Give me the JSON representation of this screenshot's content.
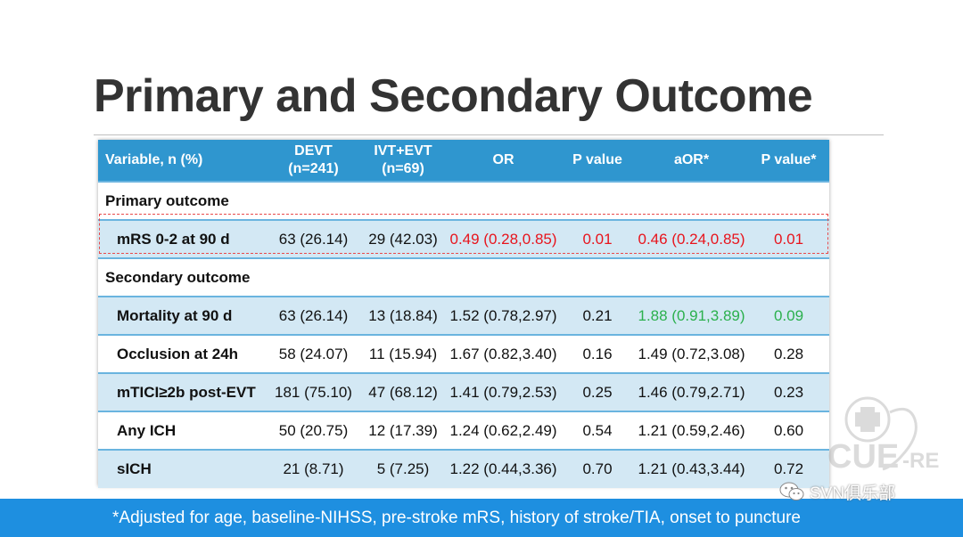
{
  "title": "Primary and Secondary Outcome",
  "table": {
    "headers": {
      "variable": "Variable, n (%)",
      "devt_1": "DEVT",
      "devt_2": "(n=241)",
      "ivt_1": "IVT+EVT",
      "ivt_2": "(n=69)",
      "or": "OR",
      "p1": "P value",
      "aor": "aOR*",
      "p2": "P value*"
    },
    "primary_label": "Primary outcome",
    "secondary_label": "Secondary outcome",
    "rows": [
      {
        "variable": "mRS 0-2 at 90 d",
        "devt": "63 (26.14)",
        "ivt": "29 (42.03)",
        "or": "0.49 (0.28,0.85)",
        "p": "0.01",
        "aor": "0.46 (0.24,0.85)",
        "p_adj": "0.01"
      },
      {
        "variable": "Mortality at 90 d",
        "devt": "63 (26.14)",
        "ivt": "13 (18.84)",
        "or": "1.52 (0.78,2.97)",
        "p": "0.21",
        "aor": "1.88 (0.91,3.89)",
        "p_adj": "0.09"
      },
      {
        "variable": "Occlusion at 24h",
        "devt": "58 (24.07)",
        "ivt": "11 (15.94)",
        "or": "1.67 (0.82,3.40)",
        "p": "0.16",
        "aor": "1.49 (0.72,3.08)",
        "p_adj": "0.28"
      },
      {
        "variable": "mTICI≥2b post-EVT",
        "devt": "181 (75.10)",
        "ivt": "47 (68.12)",
        "or": "1.41 (0.79,2.53)",
        "p": "0.25",
        "aor": "1.46 (0.79,2.71)",
        "p_adj": "0.23"
      },
      {
        "variable": "Any ICH",
        "devt": "50 (20.75)",
        "ivt": "12 (17.39)",
        "or": "1.24 (0.62,2.49)",
        "p": "0.54",
        "aor": "1.21 (0.59,2.46)",
        "p_adj": "0.60"
      },
      {
        "variable": "sICH",
        "devt": "21 (8.71)",
        "ivt": "5 (7.25)",
        "or": "1.22 (0.44,3.36)",
        "p": "0.70",
        "aor": "1.21 (0.43,3.44)",
        "p_adj": "0.72"
      }
    ]
  },
  "colors": {
    "header_bg": "#2f96cf",
    "row_alt_bg": "#d3e8f4",
    "significant": "#e8141c",
    "trend": "#2bb04d",
    "footer_bg": "#1e8fe0"
  },
  "footnote": "*Adjusted for age, baseline-NIHSS, pre-stroke mRS, history of stroke/TIA, onset to puncture",
  "watermark": {
    "icon": "cross-circle-logo-icon",
    "text_main": "CUE",
    "text_suffix": "-RE"
  },
  "wechat": {
    "icon": "wechat-icon",
    "label": "SVN俱乐部"
  }
}
